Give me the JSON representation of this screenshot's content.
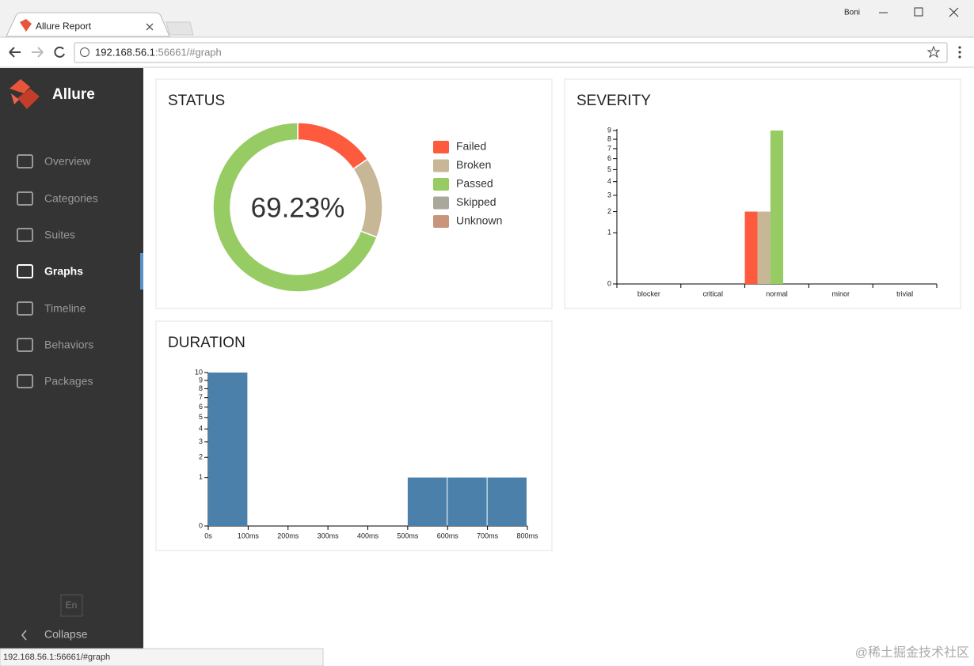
{
  "browser": {
    "tab_title": "Allure Report",
    "url_host": "192.168.56.1",
    "url_rest": ":56661/#graph",
    "user": "Boni",
    "status_url": "192.168.56.1:56661/#graph"
  },
  "sidebar": {
    "brand": "Allure",
    "nav": [
      {
        "label": "Overview"
      },
      {
        "label": "Categories"
      },
      {
        "label": "Suites"
      },
      {
        "label": "Graphs",
        "active": true
      },
      {
        "label": "Timeline"
      },
      {
        "label": "Behaviors"
      },
      {
        "label": "Packages"
      }
    ],
    "language": "En",
    "collapse": "Collapse"
  },
  "status": {
    "type": "donut",
    "title": "STATUS",
    "center_label": "69.23%",
    "segments": [
      {
        "name": "Failed",
        "color": "#fd5a3e",
        "value": 2
      },
      {
        "name": "Broken",
        "color": "#c7b796",
        "value": 2
      },
      {
        "name": "Passed",
        "color": "#97cc64",
        "value": 9
      },
      {
        "name": "Skipped",
        "color": "#aaa89a",
        "value": 0
      },
      {
        "name": "Unknown",
        "color": "#c9957a",
        "value": 0
      }
    ]
  },
  "severity": {
    "type": "bar",
    "title": "SEVERITY",
    "categories": [
      "blocker",
      "critical",
      "normal",
      "minor",
      "trivial"
    ],
    "series": [
      {
        "color": "#fd5a3e",
        "values": [
          0,
          0,
          2,
          0,
          0
        ]
      },
      {
        "color": "#c7b796",
        "values": [
          0,
          0,
          2,
          0,
          0
        ]
      },
      {
        "color": "#97cc64",
        "values": [
          0,
          0,
          9,
          0,
          0
        ]
      }
    ],
    "ylim": [
      0,
      9
    ],
    "yticks": [
      0,
      1,
      2,
      3,
      4,
      5,
      6,
      7,
      8,
      9
    ],
    "scale": "sqrt"
  },
  "duration": {
    "type": "histogram",
    "title": "DURATION",
    "bins": [
      0,
      100,
      200,
      300,
      400,
      500,
      600,
      700,
      800
    ],
    "values": [
      10,
      0,
      0,
      0,
      0,
      1,
      1,
      1
    ],
    "color": "#4a80aa",
    "xlim": [
      0,
      800
    ],
    "xticks": [
      {
        "value": 0,
        "label": "0s"
      },
      {
        "value": 100,
        "label": "100ms"
      },
      {
        "value": 200,
        "label": "200ms"
      },
      {
        "value": 300,
        "label": "300ms"
      },
      {
        "value": 400,
        "label": "400ms"
      },
      {
        "value": 500,
        "label": "500ms"
      },
      {
        "value": 600,
        "label": "600ms"
      },
      {
        "value": 700,
        "label": "700ms"
      },
      {
        "value": 800,
        "label": "800ms"
      }
    ],
    "ylim": [
      0,
      10
    ],
    "yticks": [
      0,
      1,
      2,
      3,
      4,
      5,
      6,
      7,
      8,
      9,
      10
    ],
    "scale": "sqrt"
  },
  "watermark": "@稀土掘金技术社区"
}
